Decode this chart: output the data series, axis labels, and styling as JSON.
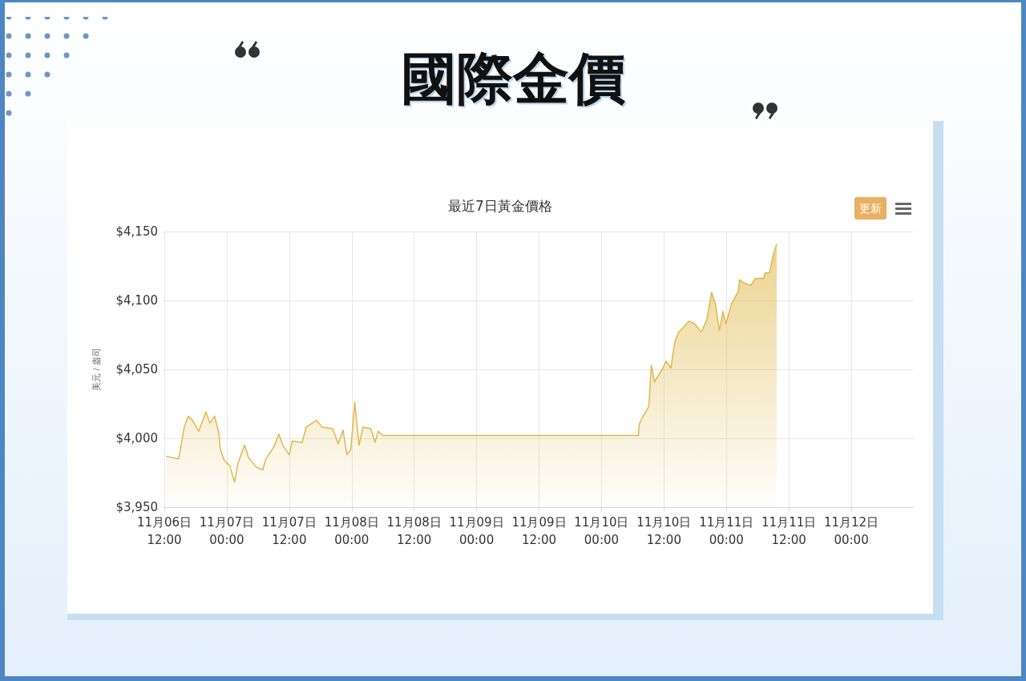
{
  "chart_data": {
    "type": "area",
    "title": "國際金價",
    "subtitle": "最近7日黃金價格",
    "ylabel": "美元 / 盎司",
    "annotations": [
      "更新"
    ],
    "color": "#e0b84a",
    "grid": true,
    "marker": "none",
    "x": [
      "--11-06T12:20",
      "--11-06T14:45",
      "--11-06T15:25",
      "--11-06T15:50",
      "--11-06T16:35",
      "--11-06T17:25",
      "--11-06T18:35",
      "--11-06T20:00",
      "--11-06T20:45",
      "--11-06T21:40",
      "--11-06T22:30",
      "--11-06T22:45",
      "--11-06T23:30",
      "--11-07T00:35",
      "--11-07T01:30",
      "--11-07T02:10",
      "--11-07T03:25",
      "--11-07T04:10",
      "--11-07T05:40",
      "--11-07T06:55",
      "--11-07T07:30",
      "--11-07T09:05",
      "--11-07T10:00",
      "--11-07T10:45",
      "--11-07T12:00",
      "--11-07T12:35",
      "--11-07T14:30",
      "--11-07T15:15",
      "--11-07T17:15",
      "--11-07T18:20",
      "--11-07T20:20",
      "--11-07T21:25",
      "--11-07T22:20",
      "--11-07T23:05",
      "--11-07T23:50",
      "--11-08T00:35",
      "--11-08T01:25",
      "--11-08T02:10",
      "--11-08T03:40",
      "--11-08T04:30",
      "--11-08T05:05",
      "--11-08T06:00",
      "--11-10T07:05",
      "--11-10T07:15",
      "--11-10T08:00",
      "--11-10T09:05",
      "--11-10T09:35",
      "--11-10T10:10",
      "--11-10T11:40",
      "--11-10T12:25",
      "--11-10T13:20",
      "--11-10T14:05",
      "--11-10T14:50",
      "--11-10T16:50",
      "--11-10T17:55",
      "--11-10T19:10",
      "--11-10T20:15",
      "--11-10T21:10",
      "--11-10T21:55",
      "--11-10T22:40",
      "--11-10T23:20",
      "--11-10T23:55",
      "--11-11T00:55",
      "--11-11T02:20",
      "--11-11T02:30",
      "--11-11T03:15",
      "--11-11T04:40",
      "--11-11T05:35",
      "--11-11T07:10",
      "--11-11T07:25",
      "--11-11T08:15",
      "--11-11T09:00",
      "--11-11T09:40"
    ],
    "values": [
      3987,
      3985,
      3999,
      4008,
      4016,
      4013,
      4005,
      4019,
      4011,
      4016,
      4003,
      3992,
      3984,
      3980,
      3968,
      3982,
      3995,
      3986,
      3979,
      3977,
      3985,
      3994,
      4003,
      3995,
      3988,
      3998,
      3997,
      4008,
      4013,
      4008,
      4007,
      3996,
      4006,
      3988,
      3992,
      4026,
      3995,
      4008,
      4007,
      3997,
      4005,
      4002,
      4002,
      4010,
      4016,
      4023,
      4053,
      4041,
      4050,
      4056,
      4051,
      4070,
      4077,
      4085,
      4083,
      4077,
      4086,
      4106,
      4097,
      4078,
      4092,
      4083,
      4097,
      4107,
      4115,
      4113,
      4111,
      4116,
      4116,
      4120,
      4120,
      4133,
      4141
    ],
    "xlim": [
      "--11-06T12:00",
      "--11-12T12:00"
    ],
    "xticks": [
      {
        "value": "--11-06T12:00",
        "label": "11月06日\n12:00"
      },
      {
        "value": "--11-07T00:00",
        "label": "11月07日\n00:00"
      },
      {
        "value": "--11-07T12:00",
        "label": "11月07日\n12:00"
      },
      {
        "value": "--11-08T00:00",
        "label": "11月08日\n00:00"
      },
      {
        "value": "--11-08T12:00",
        "label": "11月08日\n12:00"
      },
      {
        "value": "--11-09T00:00",
        "label": "11月09日\n00:00"
      },
      {
        "value": "--11-09T12:00",
        "label": "11月09日\n12:00"
      },
      {
        "value": "--11-10T00:00",
        "label": "11月10日\n00:00"
      },
      {
        "value": "--11-10T12:00",
        "label": "11月10日\n12:00"
      },
      {
        "value": "--11-11T00:00",
        "label": "11月11日\n00:00"
      },
      {
        "value": "--11-11T12:00",
        "label": "11月11日\n12:00"
      },
      {
        "value": "--11-12T00:00",
        "label": "11月12日\n00:00"
      }
    ],
    "ylim": [
      3950,
      4150
    ],
    "yticks": [
      {
        "value": 3950,
        "label": "$3,950"
      },
      {
        "value": 4000,
        "label": "$4,000"
      },
      {
        "value": 4050,
        "label": "$4,050"
      },
      {
        "value": 4100,
        "label": "$4,100"
      },
      {
        "value": 4150,
        "label": "$4,150"
      }
    ]
  }
}
